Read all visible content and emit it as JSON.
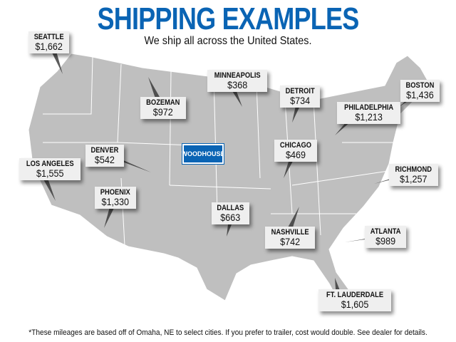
{
  "title": "SHIPPING EXAMPLES",
  "subtitle": "We ship all across the United States.",
  "logo": "WOODHOUSE",
  "footnote": "*These mileages are based off of Omaha, NE to select cities. If you prefer to trailer, cost would double. See dealer for details.",
  "colors": {
    "title": "#0a64b4",
    "map": "#bfbfbf",
    "label_bg": "#efefef"
  },
  "cities": [
    {
      "name": "SEATTLE",
      "price": "$1,662"
    },
    {
      "name": "BOZEMAN",
      "price": "$972"
    },
    {
      "name": "MINNEAPOLIS",
      "price": "$368"
    },
    {
      "name": "DETROIT",
      "price": "$734"
    },
    {
      "name": "PHILADELPHIA",
      "price": "$1,213"
    },
    {
      "name": "BOSTON",
      "price": "$1,436"
    },
    {
      "name": "LOS ANGELES",
      "price": "$1,555"
    },
    {
      "name": "DENVER",
      "price": "$542"
    },
    {
      "name": "CHICAGO",
      "price": "$469"
    },
    {
      "name": "RICHMOND",
      "price": "$1,257"
    },
    {
      "name": "PHOENIX",
      "price": "$1,330"
    },
    {
      "name": "DALLAS",
      "price": "$663"
    },
    {
      "name": "NASHVILLE",
      "price": "$742"
    },
    {
      "name": "ATLANTA",
      "price": "$989"
    },
    {
      "name": "FT. LAUDERDALE",
      "price": "$1,605"
    }
  ]
}
